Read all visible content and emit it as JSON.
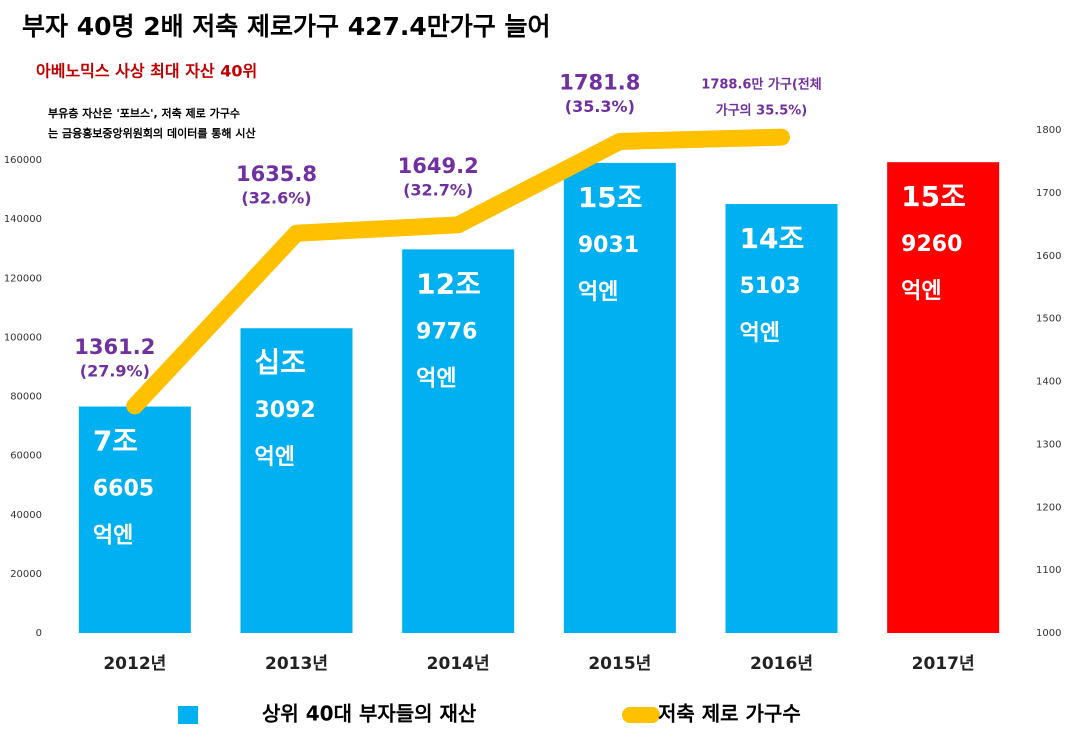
{
  "chart_data": {
    "type": "bar",
    "title": "부자 40명 2배 저축 제로가구 427.4만가구 늘어",
    "subtitle": "아베노믹스 사상 최대 자산 40위",
    "note": [
      "부유층 자산은 '포브스', 저축 제로 가구수",
      "는 금융홍보중앙위원회의 데이터를 통해 시산"
    ],
    "categories": [
      "2012년",
      "2013년",
      "2014년",
      "2015년",
      "2016년",
      "2017년"
    ],
    "series": [
      {
        "name": "상위 40대 부자들의 재산",
        "type": "bar",
        "color": "#00b0f0",
        "colors": [
          "#00b0f0",
          "#00b0f0",
          "#00b0f0",
          "#00b0f0",
          "#00b0f0",
          "#ff0000"
        ],
        "values": [
          76605,
          103092,
          129776,
          159031,
          145103,
          159260
        ],
        "value_labels": [
          [
            "7조",
            "6605",
            "억엔"
          ],
          [
            "십조",
            "3092",
            "억엔"
          ],
          [
            "12조",
            "9776",
            "억엔"
          ],
          [
            "15조",
            "9031",
            "억엔"
          ],
          [
            "14조",
            "5103",
            "억엔"
          ],
          [
            "15조",
            "9260",
            "억엔"
          ]
        ]
      },
      {
        "name": "저축 제로 가구수",
        "type": "line",
        "color": "#ffc000",
        "axis": "y2",
        "values": [
          1361.2,
          1635.8,
          1649.2,
          1781.8,
          1788.6,
          null
        ],
        "value_labels": [
          [
            "1361.2",
            "(27.9%)"
          ],
          [
            "1635.8",
            "(32.6%)"
          ],
          [
            "1649.2",
            "(32.7%)"
          ],
          [
            "1781.8",
            "(35.3%)"
          ],
          [
            "1788.6만 가구(전체",
            "가구의 35.5%)"
          ],
          null
        ]
      }
    ],
    "ylim": [
      0,
      160000
    ],
    "yticks": [
      0,
      20000,
      40000,
      60000,
      80000,
      100000,
      120000,
      140000,
      160000
    ],
    "y2lim": [
      1000,
      1800
    ],
    "y2ticks": [
      1000,
      1100,
      1200,
      1300,
      1400,
      1500,
      1600,
      1700,
      1800
    ],
    "legend": "bottom"
  }
}
